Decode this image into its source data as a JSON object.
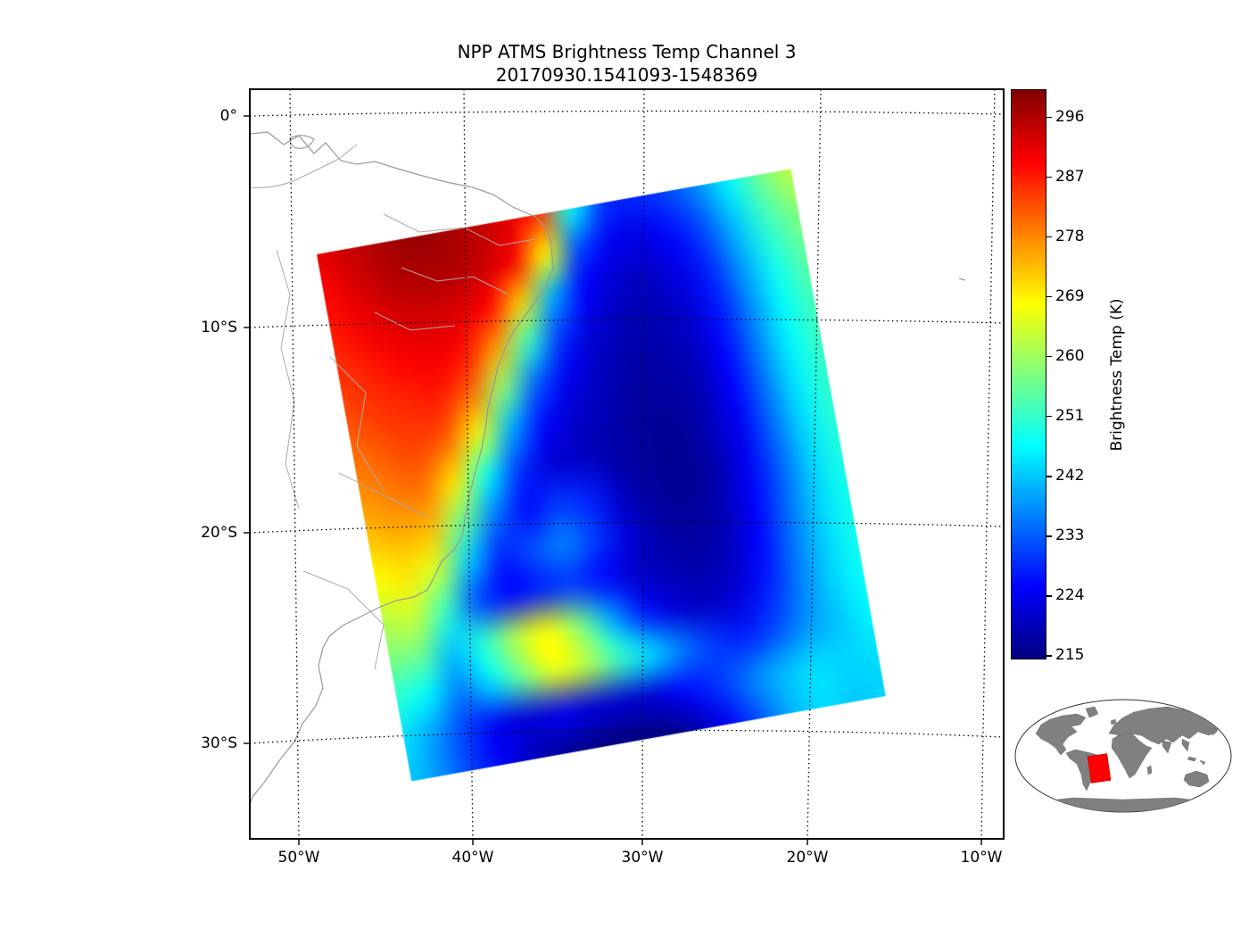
{
  "chart_data": {
    "type": "heatmap",
    "title": "NPP ATMS Brightness Temp Channel 3",
    "subtitle": "20170930.1541093-1548369",
    "projection": "regional map of eastern South America and the South Atlantic with satellite swath overlay",
    "x_tick_labels": [
      "50°W",
      "40°W",
      "30°W",
      "20°W",
      "10°W"
    ],
    "y_tick_labels": [
      "0°",
      "10°S",
      "20°S",
      "30°S"
    ],
    "grid_lines": "dotted black graticule",
    "colorbar": {
      "label": "Brightness Temp (K)",
      "ticks": [
        296,
        287,
        278,
        269,
        260,
        251,
        242,
        233,
        224,
        215
      ],
      "vmin": 214.5,
      "vmax": 300,
      "colormap": "jet"
    },
    "swath": {
      "rotation_deg": -10.2,
      "grid_rows": 14,
      "grid_cols": 16,
      "grid_order": "rows north to south, columns west to east, approximate brightness temperature in kelvin",
      "grid": [
        [
          291,
          294,
          296,
          298,
          297,
          295,
          292,
          286,
          248,
          230,
          228,
          231,
          237,
          246,
          256,
          263
        ],
        [
          289,
          292,
          295,
          296,
          296,
          294,
          290,
          268,
          232,
          224,
          223,
          226,
          232,
          242,
          252,
          258
        ],
        [
          287,
          290,
          292,
          293,
          292,
          289,
          272,
          240,
          225,
          221,
          220,
          223,
          229,
          239,
          249,
          255
        ],
        [
          285,
          287,
          289,
          290,
          288,
          276,
          252,
          230,
          222,
          219,
          219,
          221,
          227,
          237,
          247,
          253
        ],
        [
          283,
          285,
          286,
          287,
          280,
          258,
          234,
          224,
          220,
          218,
          218,
          220,
          226,
          236,
          246,
          252
        ],
        [
          280,
          282,
          284,
          281,
          266,
          240,
          226,
          221,
          219,
          217,
          217,
          219,
          225,
          235,
          245,
          251
        ],
        [
          277,
          279,
          280,
          270,
          248,
          230,
          222,
          220,
          218,
          217,
          216,
          219,
          224,
          234,
          244,
          250
        ],
        [
          273,
          275,
          274,
          256,
          236,
          226,
          230,
          228,
          220,
          217,
          216,
          218,
          224,
          233,
          243,
          249
        ],
        [
          268,
          270,
          264,
          242,
          228,
          232,
          236,
          230,
          222,
          218,
          217,
          219,
          225,
          234,
          243,
          248
        ],
        [
          262,
          264,
          252,
          232,
          226,
          228,
          230,
          226,
          221,
          219,
          218,
          220,
          226,
          235,
          243,
          248
        ],
        [
          257,
          256,
          242,
          250,
          262,
          268,
          258,
          240,
          228,
          222,
          220,
          222,
          228,
          236,
          243,
          247
        ],
        [
          250,
          246,
          236,
          244,
          256,
          266,
          262,
          252,
          244,
          236,
          230,
          228,
          232,
          238,
          242,
          246
        ],
        [
          244,
          238,
          230,
          224,
          222,
          224,
          222,
          221,
          222,
          226,
          230,
          236,
          241,
          244,
          243,
          244
        ],
        [
          242,
          237,
          230,
          224,
          219,
          216,
          214,
          214,
          215,
          218,
          224,
          232,
          240,
          244,
          242,
          243
        ]
      ]
    },
    "inset": {
      "description": "world locator map showing the swath footprint over northeastern Brazil and the adjacent Atlantic",
      "footprint_color": "#ff0000",
      "land_color": "#808080"
    }
  }
}
